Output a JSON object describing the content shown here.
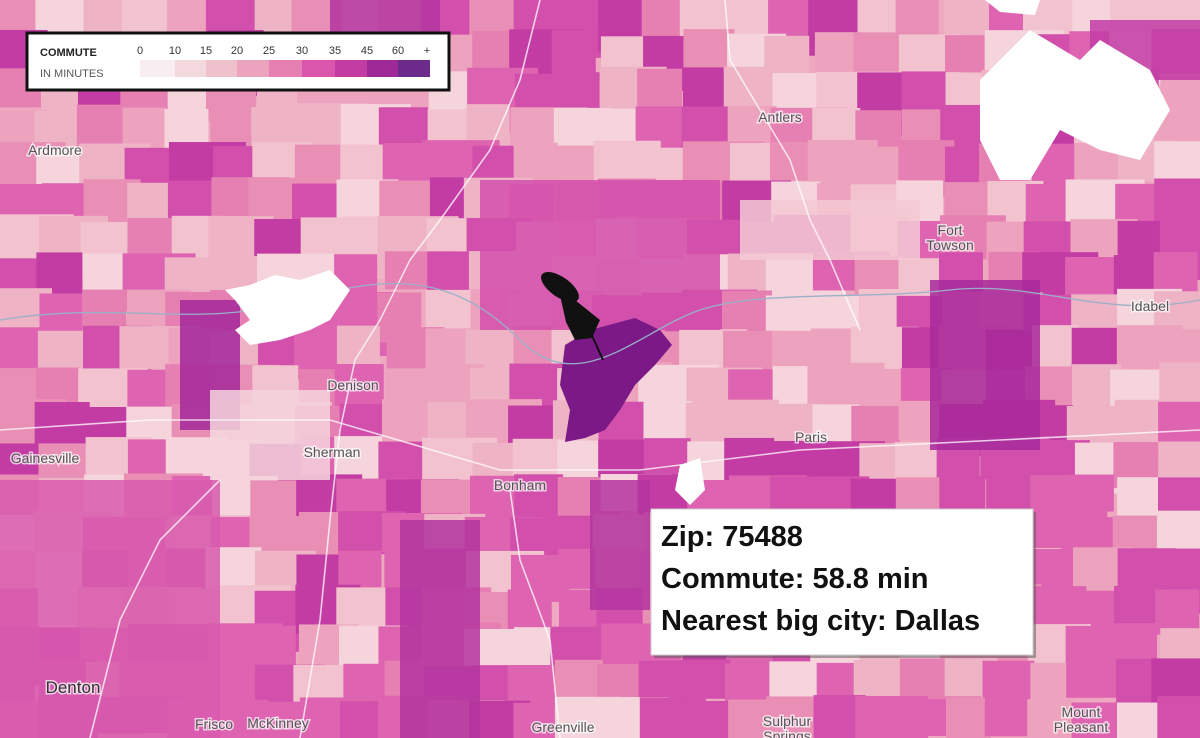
{
  "legend": {
    "title": "COMMUTE",
    "subtitle": "IN MINUTES",
    "stops": [
      0,
      10,
      15,
      20,
      25,
      30,
      35,
      45,
      60,
      "+"
    ],
    "colors": [
      "#f8eef1",
      "#f3d8de",
      "#efc1cc",
      "#eca3bd",
      "#e67fb2",
      "#da56ad",
      "#c23ca4",
      "#9d2a96",
      "#6c2a8a"
    ]
  },
  "places": [
    {
      "lines": [
        "Antlers"
      ]
    },
    {
      "lines": [
        "Ardmore"
      ]
    },
    {
      "lines": [
        "Fort",
        "Towson"
      ]
    },
    {
      "lines": [
        "Idabel"
      ]
    },
    {
      "lines": [
        "Denison"
      ]
    },
    {
      "lines": [
        "Paris"
      ]
    },
    {
      "lines": [
        "Gainesville"
      ]
    },
    {
      "lines": [
        "Sherman"
      ]
    },
    {
      "lines": [
        "Bonham"
      ]
    },
    {
      "lines": [
        "Denton"
      ]
    },
    {
      "lines": [
        "McKinney"
      ]
    },
    {
      "lines": [
        "Frisco"
      ]
    },
    {
      "lines": [
        "Greenville"
      ]
    },
    {
      "lines": [
        "Sulphur",
        "Springs"
      ]
    },
    {
      "lines": [
        "Mount",
        "Pleasant"
      ]
    }
  ],
  "info": {
    "lines": [
      "Zip: 75488",
      "Commute: 58.8 min",
      "Nearest big city: Dallas"
    ]
  }
}
